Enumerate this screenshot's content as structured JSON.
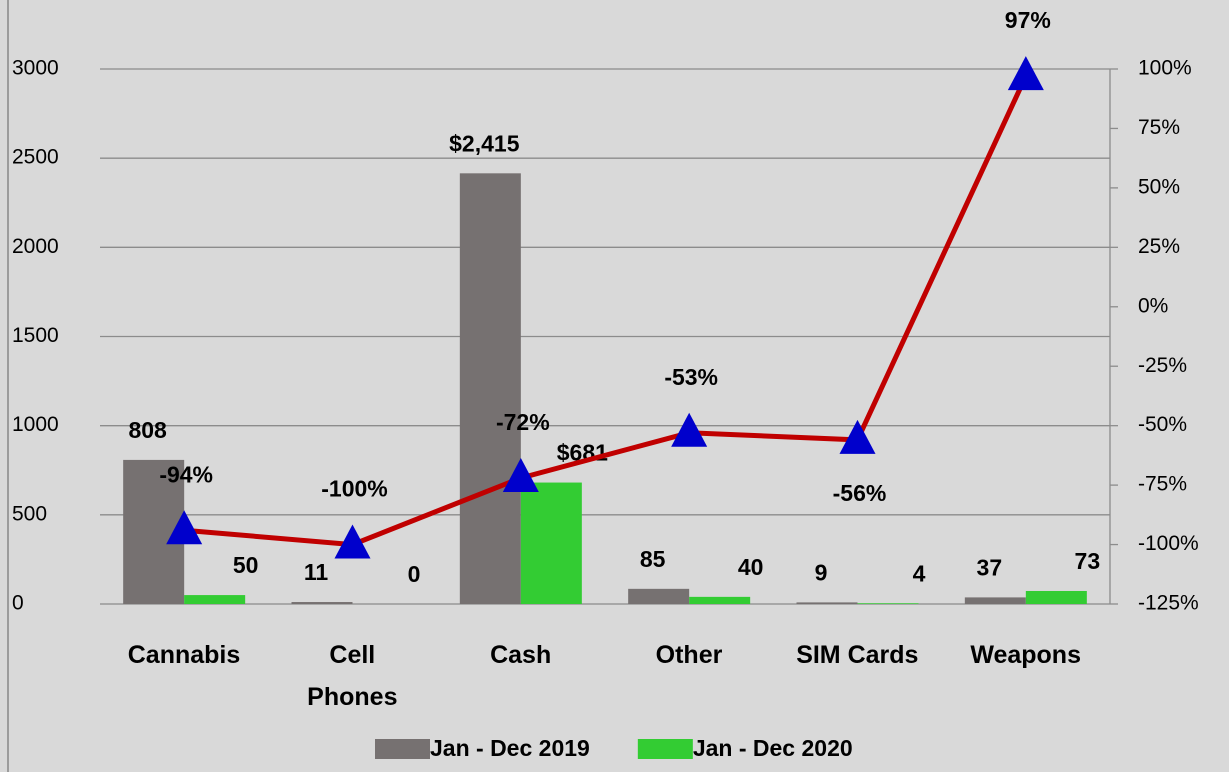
{
  "chart_data": {
    "type": "bar",
    "categories": [
      "Cannabis",
      "Cell\nPhones",
      "Cash",
      "Other",
      "SIM Cards",
      "Weapons"
    ],
    "series": [
      {
        "name": "Jan - Dec 2019",
        "color": "#767171",
        "values": [
          808,
          11,
          2415,
          85,
          9,
          37
        ],
        "value_labels": [
          "808",
          "11",
          "$2,415",
          "85",
          "9",
          "37"
        ]
      },
      {
        "name": "Jan - Dec 2020",
        "color": "#33cc33",
        "values": [
          50,
          0,
          681,
          40,
          4,
          73
        ],
        "value_labels": [
          "50",
          "0",
          "$681",
          "40",
          "4",
          "73"
        ]
      },
      {
        "type": "line",
        "axis": "y2",
        "color": "#c00000",
        "marker_color": "#0000cc",
        "values": [
          -94,
          -100,
          -72,
          -53,
          -56,
          97
        ],
        "value_labels": [
          "-94%",
          "-100%",
          "-72%",
          "-53%",
          "-56%",
          "97%"
        ]
      }
    ],
    "ylim": [
      0,
      3000
    ],
    "yticks": [
      0,
      500,
      1000,
      1500,
      2000,
      2500,
      3000
    ],
    "y2lim": [
      -125,
      100
    ],
    "y2ticks": [
      {
        "value": -125,
        "label": "-125%"
      },
      {
        "value": -100,
        "label": "-100%"
      },
      {
        "value": -75,
        "label": "-75%"
      },
      {
        "value": -50,
        "label": "-50%"
      },
      {
        "value": -25,
        "label": "-25%"
      },
      {
        "value": 0,
        "label": "0%"
      },
      {
        "value": 25,
        "label": "25%"
      },
      {
        "value": 50,
        "label": "50%"
      },
      {
        "value": 75,
        "label": "75%"
      },
      {
        "value": 100,
        "label": "100%"
      }
    ],
    "grid": true,
    "legend": "bottom"
  }
}
